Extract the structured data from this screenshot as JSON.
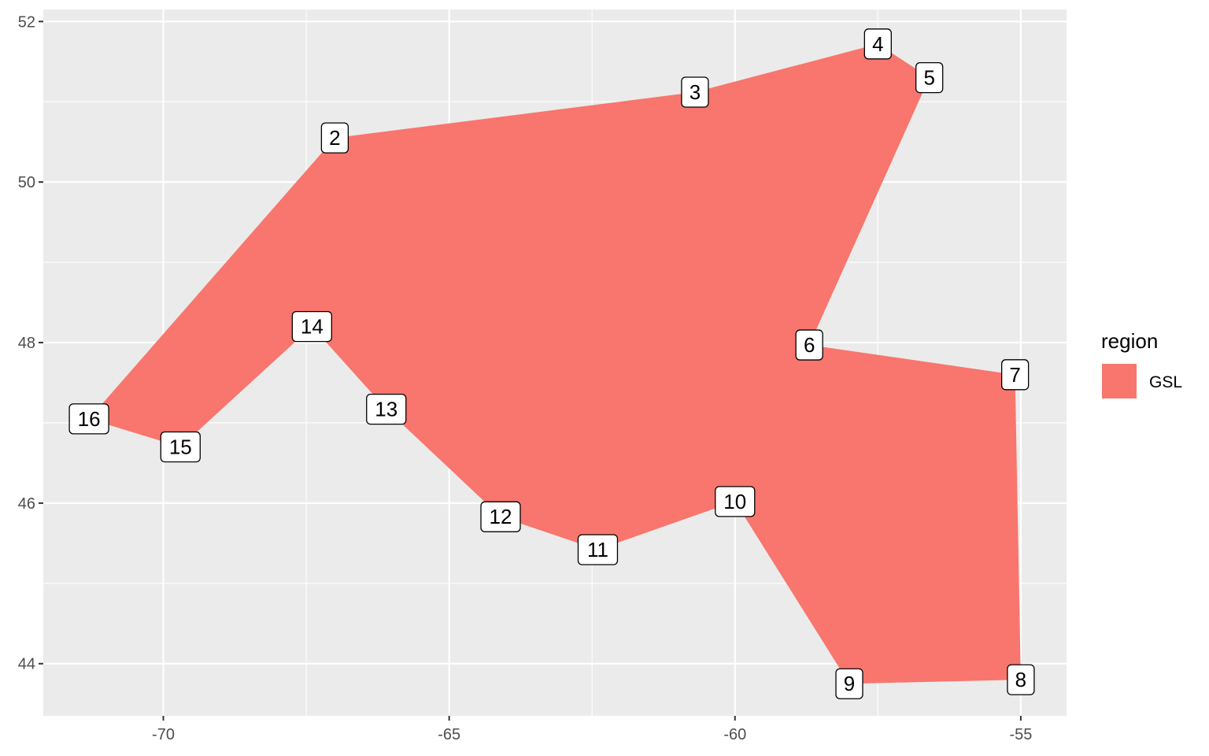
{
  "chart_data": {
    "type": "area",
    "xlim": [
      -72.1,
      -54.2
    ],
    "ylim": [
      43.35,
      52.15
    ],
    "x_ticks": [
      -70,
      -65,
      -60,
      -55
    ],
    "y_ticks": [
      44,
      46,
      48,
      50,
      52
    ],
    "x_tick_labels": [
      "-70",
      "-65",
      "-60",
      "-55"
    ],
    "y_tick_labels": [
      "44",
      "46",
      "48",
      "50",
      "52"
    ],
    "grid": true,
    "legend": {
      "title": "region",
      "position": "right",
      "entries": [
        {
          "label": "GSL",
          "color": "#F8766D"
        }
      ]
    },
    "series": [
      {
        "name": "GSL",
        "color": "#F8766D",
        "points": [
          {
            "label": "2",
            "x": -67.0,
            "y": 50.55
          },
          {
            "label": "3",
            "x": -60.7,
            "y": 51.12
          },
          {
            "label": "4",
            "x": -57.5,
            "y": 51.72
          },
          {
            "label": "5",
            "x": -56.6,
            "y": 51.3
          },
          {
            "label": "6",
            "x": -58.7,
            "y": 47.97
          },
          {
            "label": "7",
            "x": -55.1,
            "y": 47.6
          },
          {
            "label": "8",
            "x": -55.0,
            "y": 43.8
          },
          {
            "label": "9",
            "x": -58.0,
            "y": 43.75
          },
          {
            "label": "10",
            "x": -60.0,
            "y": 46.02
          },
          {
            "label": "11",
            "x": -62.4,
            "y": 45.42
          },
          {
            "label": "12",
            "x": -64.1,
            "y": 45.83
          },
          {
            "label": "13",
            "x": -66.1,
            "y": 47.17
          },
          {
            "label": "14",
            "x": -67.4,
            "y": 48.2
          },
          {
            "label": "15",
            "x": -69.7,
            "y": 46.7
          },
          {
            "label": "16",
            "x": -71.3,
            "y": 47.05
          }
        ]
      }
    ]
  },
  "colors": {
    "panel_bg": "#EBEBEB",
    "grid_major": "#FFFFFF",
    "fill": "#F8766D"
  }
}
